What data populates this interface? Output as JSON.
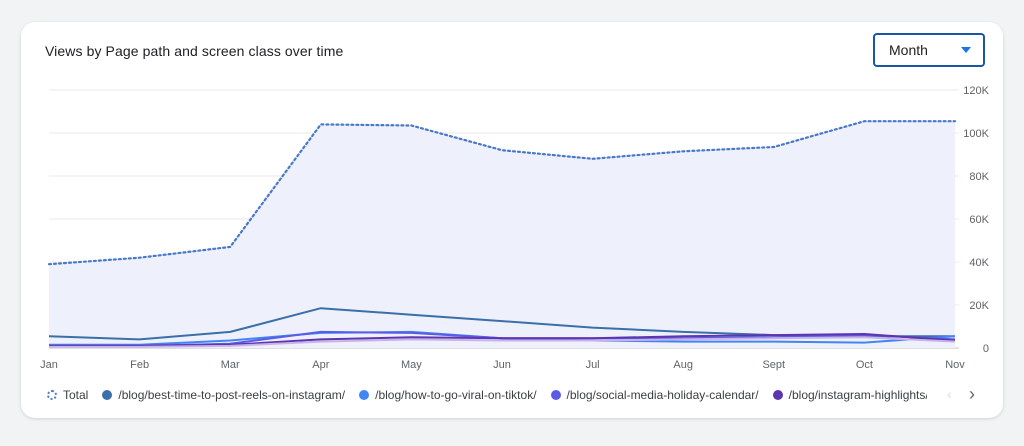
{
  "header": {
    "title": "Views by Page path and screen class over time",
    "period_value": "Month"
  },
  "legend": {
    "items": [
      {
        "label": "Total",
        "color": "#4a78c9",
        "dashed": true
      },
      {
        "label": "/blog/best-time-to-post-reels-on-instagram/",
        "color": "#3a6fa8"
      },
      {
        "label": "/blog/how-to-go-viral-on-tiktok/",
        "color": "#4285f4"
      },
      {
        "label": "/blog/social-media-holiday-calendar/",
        "color": "#5b5be6"
      },
      {
        "label": "/blog/instagram-highlights/",
        "color": "#5e35b1"
      },
      {
        "label": "/",
        "color": "#c9b3e6"
      }
    ],
    "next_icon": "chevron-right-icon",
    "prev_icon": "chevron-left-icon"
  },
  "chart_data": {
    "type": "line",
    "title": "Views by Page path and screen class over time",
    "categories": [
      "Jan",
      "Feb",
      "Mar",
      "Apr",
      "May",
      "Jun",
      "Jul",
      "Aug",
      "Sept",
      "Oct",
      "Nov"
    ],
    "y_ticks": [
      "0",
      "20K",
      "40K",
      "60K",
      "80K",
      "100K",
      "120K"
    ],
    "ylim": [
      0,
      120000
    ],
    "grid": true,
    "y_axis_side": "right",
    "legend_position": "bottom",
    "series": [
      {
        "name": "Total",
        "style": "dotted-area",
        "color": "#4a78c9",
        "values": [
          39000,
          42000,
          47000,
          104000,
          103500,
          92000,
          88000,
          91500,
          93500,
          105500,
          105500
        ]
      },
      {
        "name": "/blog/best-time-to-post-reels-on-instagram/",
        "color": "#3a6fa8",
        "values": [
          5500,
          4000,
          7500,
          18500,
          15500,
          12500,
          9500,
          7500,
          6000,
          5500,
          5500
        ]
      },
      {
        "name": "/blog/how-to-go-viral-on-tiktok/",
        "color": "#4285f4",
        "values": [
          1500,
          1500,
          3500,
          7000,
          7500,
          4500,
          3500,
          3000,
          3000,
          2500,
          5500
        ]
      },
      {
        "name": "/blog/social-media-holiday-calendar/",
        "color": "#5b5be6",
        "values": [
          1000,
          1000,
          2000,
          7500,
          7000,
          4500,
          4500,
          4500,
          5000,
          6000,
          4000
        ]
      },
      {
        "name": "/blog/instagram-highlights/",
        "color": "#5e35b1",
        "values": [
          1000,
          1000,
          1500,
          4000,
          5000,
          4500,
          4500,
          5500,
          6000,
          6500,
          3500
        ]
      },
      {
        "name": "/",
        "color": "#c9b3e6",
        "values": [
          500,
          500,
          1000,
          3000,
          4000,
          3500,
          3500,
          4000,
          4500,
          5000,
          3000
        ]
      }
    ]
  }
}
